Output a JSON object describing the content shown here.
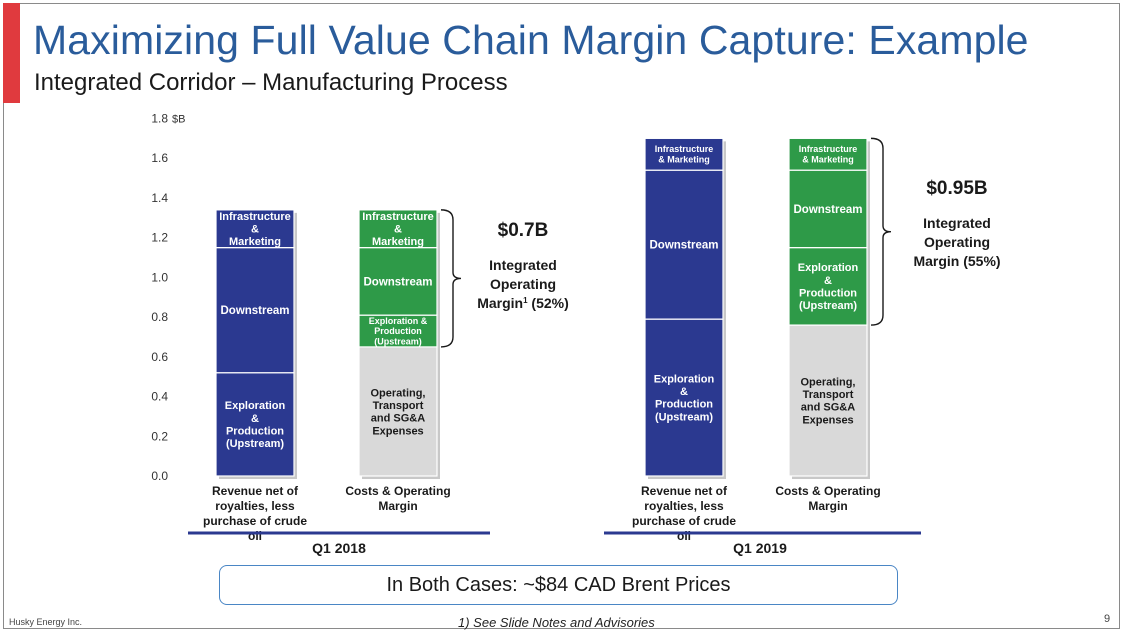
{
  "slide": {
    "title": "Maximizing Full Value Chain Margin Capture: Example",
    "subtitle": "Integrated Corridor – Manufacturing Process",
    "bottom_note": "In Both Cases: ~$84 CAD Brent Prices",
    "company": "Husky Energy Inc.",
    "footnote": "1) See Slide Notes and Advisories",
    "page_number": "9",
    "colors": {
      "accent": "#e03a3e",
      "title": "#2a5c9b",
      "navy": "#2b3990",
      "green": "#2e9a48",
      "gray": "#d9d9d9",
      "pill_border": "#4a86c5"
    }
  },
  "chart_data": {
    "type": "bar",
    "stacked": true,
    "unit_label": "$B",
    "ylim": [
      0,
      1.8
    ],
    "yticks": [
      "0.0",
      "0.2",
      "0.4",
      "0.6",
      "0.8",
      "1.0",
      "1.2",
      "1.4",
      "1.6",
      "1.8"
    ],
    "grid": false,
    "groups": [
      {
        "label": "Q1 2018",
        "callout": {
          "value": "$0.7B",
          "label": "Integrated Operating Margin",
          "footnote_mark": "1",
          "share": "(52%)"
        },
        "bars": [
          {
            "label": "Revenue net of royalties, less purchase of crude oil",
            "segments": [
              {
                "label": "Exploration & Production (Upstream)",
                "value": 0.52,
                "color": "navy"
              },
              {
                "label": "Downstream",
                "value": 0.63,
                "color": "navy"
              },
              {
                "label": "Infrastructure & Marketing",
                "value": 0.19,
                "color": "navy"
              }
            ]
          },
          {
            "label": "Costs & Operating Margin",
            "segments": [
              {
                "label": "Operating, Transport and SG&A Expenses",
                "value": 0.65,
                "color": "gray"
              },
              {
                "label": "Exploration & Production (Upstream)",
                "value": 0.16,
                "color": "green"
              },
              {
                "label": "Downstream",
                "value": 0.34,
                "color": "green"
              },
              {
                "label": "Infrastructure & Marketing",
                "value": 0.19,
                "color": "green"
              }
            ]
          }
        ]
      },
      {
        "label": "Q1 2019",
        "callout": {
          "value": "$0.95B",
          "label": "Integrated Operating Margin",
          "footnote_mark": "",
          "share": "(55%)"
        },
        "bars": [
          {
            "label": "Revenue net of royalties, less purchase of crude oil",
            "segments": [
              {
                "label": "Exploration & Production (Upstream)",
                "value": 0.79,
                "color": "navy"
              },
              {
                "label": "Downstream",
                "value": 0.75,
                "color": "navy"
              },
              {
                "label": "Infrastructure & Marketing",
                "value": 0.16,
                "color": "navy"
              }
            ]
          },
          {
            "label": "Costs & Operating Margin",
            "segments": [
              {
                "label": "Operating, Transport and SG&A Expenses",
                "value": 0.76,
                "color": "gray"
              },
              {
                "label": "Exploration & Production (Upstream)",
                "value": 0.39,
                "color": "green"
              },
              {
                "label": "Downstream",
                "value": 0.39,
                "color": "green"
              },
              {
                "label": "Infrastructure & Marketing",
                "value": 0.16,
                "color": "green"
              }
            ]
          }
        ]
      }
    ]
  }
}
